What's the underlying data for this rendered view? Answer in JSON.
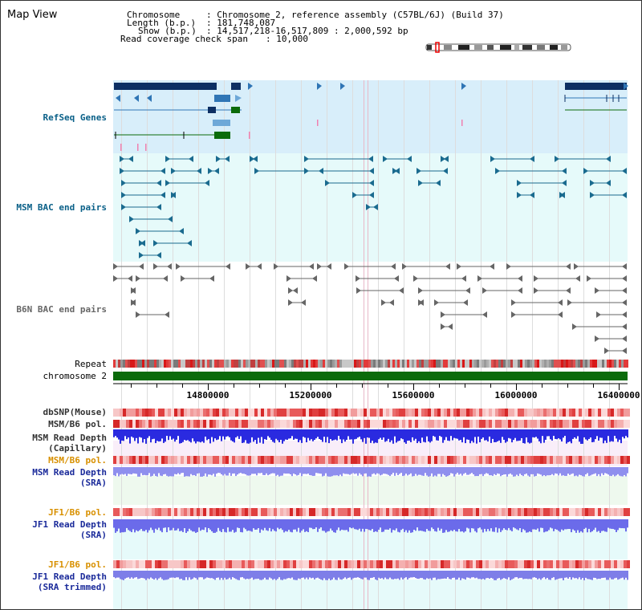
{
  "app": {
    "title": "Map View"
  },
  "info": {
    "chromosome_label": "Chromosome",
    "chromosome_value": ": Chromosome 2, reference assembly (C57BL/6J) (Build 37)",
    "length_label": "Length (b.p.)",
    "length_value": ": 181,748,087",
    "show_label": "Show (b.p.)",
    "show_value": ": 14,517,218-16,517,809 : 2,000,592 bp",
    "coverage_label": "Read coverage check span",
    "coverage_value": ": 10,000"
  },
  "tracks": {
    "refseq": "RefSeq Genes",
    "msm_bac": "MSM BAC end pairs",
    "b6n_bac": "B6N BAC end pairs",
    "repeat": "Repeat",
    "chromosome": "chromosome 2",
    "dbsnp": "dbSNP(Mouse)",
    "msm_b6_pol_1": "MSM/B6 pol.",
    "msm_depth_cap": "MSM Read Depth\n(Capillary)",
    "msm_b6_pol_2": "MSM/B6 pol.",
    "msm_depth_sra": "MSM Read Depth\n(SRA)",
    "jf1_b6_pol_1": "JF1/B6 pol.",
    "jf1_depth_sra": "JF1 Read Depth\n(SRA)",
    "jf1_b6_pol_2": "JF1/B6 pol.",
    "jf1_depth_trim": "JF1 Read Depth\n(SRA trimmed)"
  },
  "axis": {
    "ticks": [
      "14800000",
      "15200000",
      "15600000",
      "16000000",
      "16400000"
    ]
  },
  "colors": {
    "refseq_bg": "#d8eefa",
    "msm_bg": "#e6fafa",
    "gene_dark": "#0d2f63",
    "gene_mid": "#2f75b5",
    "gene_light": "#6ea8d8",
    "gene_green": "#0b6b0b",
    "msm_pair": "#1a6b8f",
    "b6n_pair": "#666666",
    "chrom_green": "#0b6b0b",
    "pol_red": "#e03030",
    "depth_blue": "#2222dd",
    "label_teal": "#0a6088",
    "label_navy": "#1a2a9a",
    "label_orange": "#d89000"
  }
}
